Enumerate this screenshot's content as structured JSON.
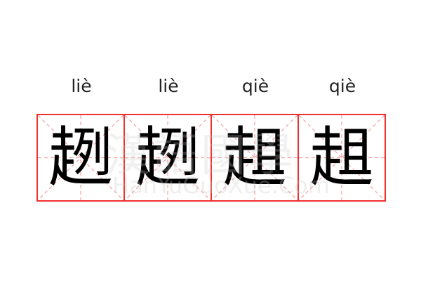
{
  "pinyin": [
    "liè",
    "liè",
    "qiè",
    "qiè"
  ],
  "characters": [
    "趔",
    "趔",
    "趄",
    "趄"
  ],
  "watermark": {
    "chinese": "漢語國學",
    "latin": "HanYuGuoXue.Com"
  },
  "colors": {
    "border": "#f03030",
    "guide": "#f5a0a0",
    "text": "#000000"
  }
}
